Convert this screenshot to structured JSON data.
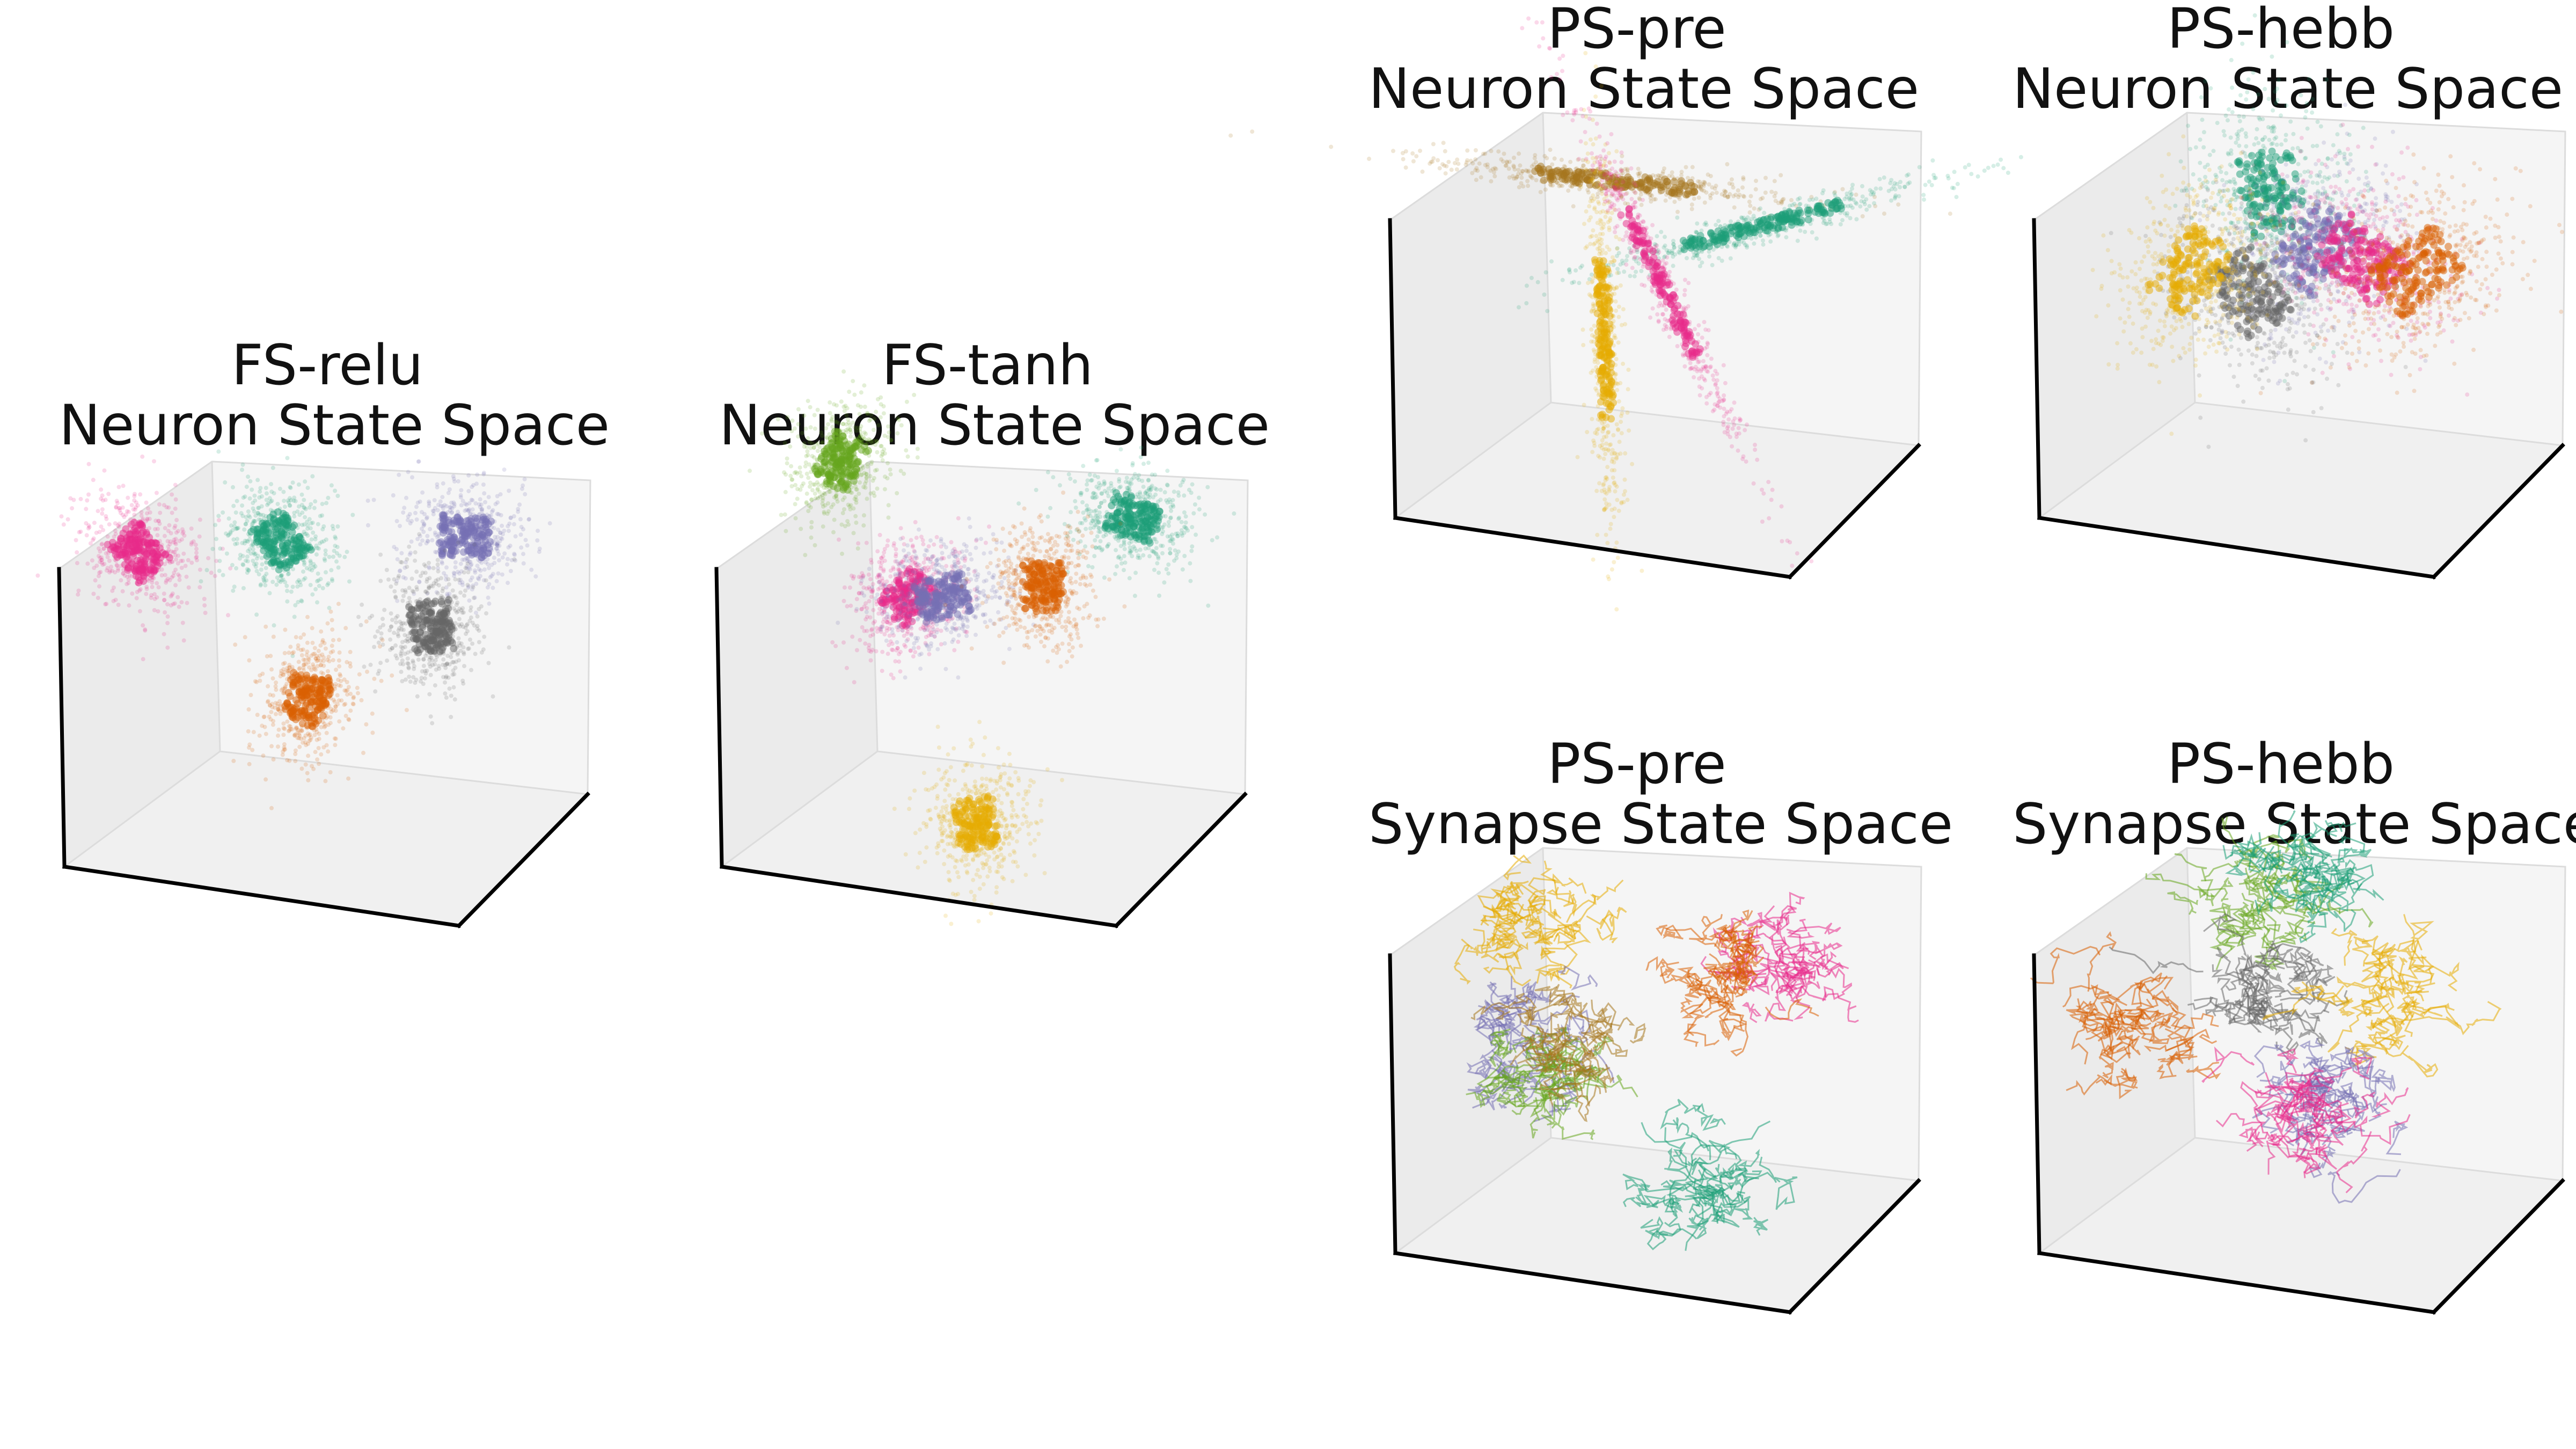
{
  "figure": {
    "panels": [
      {
        "id": "fs-relu",
        "title_line1": "FS-relu",
        "title_line2": "Neuron State Space",
        "chart_data": {
          "type": "scatter3d",
          "title": "FS-relu\nNeuron State Space",
          "axes": "unlabeled, no ticks",
          "style": "dense point clouds",
          "clusters": [
            {
              "color": "#e7298a",
              "center": [
                -0.75,
                0.55
              ]
            },
            {
              "color": "#1b9e77",
              "center": [
                -0.12,
                0.6
              ]
            },
            {
              "color": "#7570b3",
              "center": [
                0.7,
                0.62
              ]
            },
            {
              "color": "#666666",
              "center": [
                0.55,
                0.22
              ]
            },
            {
              "color": "#d95f02",
              "center": [
                0.0,
                -0.1
              ]
            }
          ]
        }
      },
      {
        "id": "fs-tanh",
        "title_line1": "FS-tanh",
        "title_line2": "Neuron State Space",
        "chart_data": {
          "type": "scatter3d",
          "title": "FS-tanh\nNeuron State Space",
          "axes": "unlabeled, no ticks",
          "style": "dense point clouds",
          "clusters": [
            {
              "color": "#66a61e",
              "center": [
                -0.55,
                0.95
              ]
            },
            {
              "color": "#1b9e77",
              "center": [
                0.75,
                0.7
              ]
            },
            {
              "color": "#e7298a",
              "center": [
                -0.25,
                0.35
              ]
            },
            {
              "color": "#7570b3",
              "center": [
                -0.1,
                0.35
              ]
            },
            {
              "color": "#d95f02",
              "center": [
                0.35,
                0.4
              ]
            },
            {
              "color": "#e6ab02",
              "center": [
                0.05,
                -0.65
              ]
            }
          ]
        }
      },
      {
        "id": "ps-pre-neuron",
        "title_line1": "PS-pre",
        "title_line2": "Neuron State Space",
        "chart_data": {
          "type": "scatter3d",
          "title": "PS-pre\nNeuron State Space",
          "axes": "unlabeled, no ticks",
          "style": "elongated streaks",
          "clusters": [
            {
              "color": "#a6761d",
              "center": [
                -0.1,
                0.65
              ]
            },
            {
              "color": "#1b9e77",
              "center": [
                0.55,
                0.45
              ]
            },
            {
              "color": "#e6ab02",
              "center": [
                -0.15,
                -0.05
              ]
            },
            {
              "color": "#e7298a",
              "center": [
                0.1,
                0.2
              ]
            }
          ]
        }
      },
      {
        "id": "ps-hebb-neuron",
        "title_line1": "PS-hebb",
        "title_line2": "Neuron State Space",
        "chart_data": {
          "type": "scatter3d",
          "title": "PS-hebb\nNeuron State Space",
          "axes": "unlabeled, no ticks",
          "style": "diffuse point clouds",
          "clusters": [
            {
              "color": "#1b9e77",
              "center": [
                -0.05,
                0.6
              ]
            },
            {
              "color": "#7570b3",
              "center": [
                0.15,
                0.35
              ]
            },
            {
              "color": "#e7298a",
              "center": [
                0.35,
                0.3
              ]
            },
            {
              "color": "#d95f02",
              "center": [
                0.6,
                0.25
              ]
            },
            {
              "color": "#666666",
              "center": [
                -0.15,
                0.15
              ]
            },
            {
              "color": "#e6ab02",
              "center": [
                -0.4,
                0.25
              ]
            }
          ]
        }
      },
      {
        "id": "ps-pre-synapse",
        "title_line1": "PS-pre",
        "title_line2": "Synapse State Space",
        "chart_data": {
          "type": "trajectory3d",
          "title": "PS-pre\nSynapse State Space",
          "axes": "unlabeled, no ticks",
          "style": "tangled trajectories",
          "clusters": [
            {
              "color": "#e6ab02",
              "center": [
                -0.45,
                0.6
              ]
            },
            {
              "color": "#e7298a",
              "center": [
                0.65,
                0.45
              ]
            },
            {
              "color": "#d95f02",
              "center": [
                0.35,
                0.35
              ]
            },
            {
              "color": "#7570b3",
              "center": [
                -0.5,
                0.1
              ]
            },
            {
              "color": "#66a61e",
              "center": [
                -0.4,
                -0.05
              ]
            },
            {
              "color": "#a6761d",
              "center": [
                -0.3,
                0.1
              ]
            },
            {
              "color": "#1b9e77",
              "center": [
                0.3,
                -0.55
              ]
            }
          ]
        }
      },
      {
        "id": "ps-hebb-synapse",
        "title_line1": "PS-hebb",
        "title_line2": "Synapse State Space",
        "chart_data": {
          "type": "trajectory3d",
          "title": "PS-hebb\nSynapse State Space",
          "axes": "unlabeled, no ticks",
          "style": "tangled trajectories",
          "clusters": [
            {
              "color": "#66a61e",
              "center": [
                -0.1,
                0.75
              ]
            },
            {
              "color": "#1b9e77",
              "center": [
                0.15,
                0.8
              ]
            },
            {
              "color": "#d95f02",
              "center": [
                -0.7,
                0.15
              ]
            },
            {
              "color": "#666666",
              "center": [
                -0.05,
                0.3
              ]
            },
            {
              "color": "#e6ab02",
              "center": [
                0.45,
                0.3
              ]
            },
            {
              "color": "#7570b3",
              "center": [
                0.25,
                -0.15
              ]
            },
            {
              "color": "#e7298a",
              "center": [
                0.1,
                -0.25
              ]
            }
          ]
        }
      }
    ]
  }
}
